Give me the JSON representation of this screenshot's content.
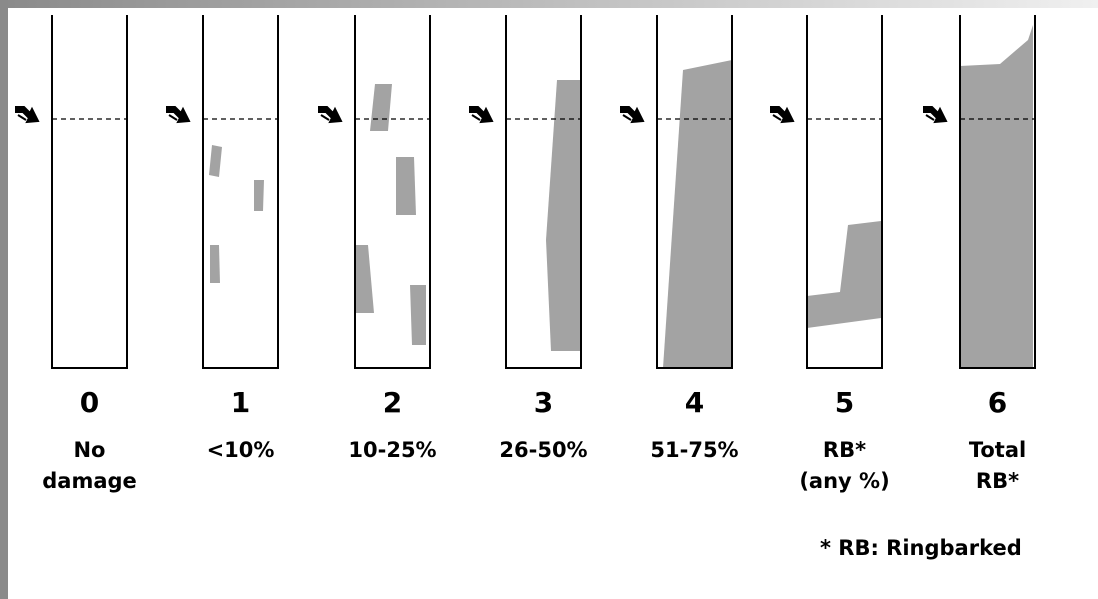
{
  "columns": [
    {
      "score": "0",
      "label": [
        "No",
        "damage"
      ]
    },
    {
      "score": "1",
      "label": [
        "<10%"
      ]
    },
    {
      "score": "2",
      "label": [
        "10-25%"
      ]
    },
    {
      "score": "3",
      "label": [
        "26-50%"
      ]
    },
    {
      "score": "4",
      "label": [
        "51-75%"
      ]
    },
    {
      "score": "5",
      "label": [
        "RB*",
        "(any %)"
      ]
    },
    {
      "score": "6",
      "label": [
        "Total",
        "RB*"
      ]
    }
  ],
  "footnote": "* RB: Ringbarked"
}
